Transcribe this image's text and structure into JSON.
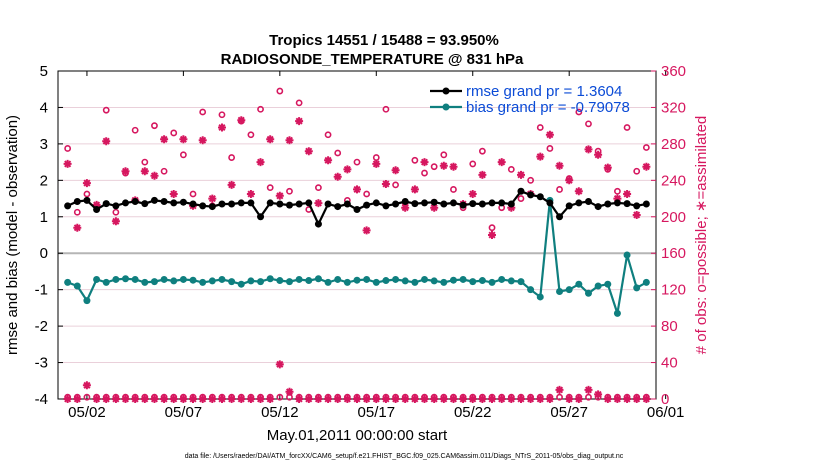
{
  "colors": {
    "rmse": "#000000",
    "bias": "#0f7f7f",
    "obs": "#d6175f",
    "legend_text": "#0b4bd6",
    "grid": "#ead0da",
    "zero_line": "#b5b5b5"
  },
  "chart_data": {
    "type": "line",
    "title": "Tropics 14551 / 15488 = 93.950%",
    "subtitle": "RADIOSONDE_TEMPERATURE @ 831 hPa",
    "xlabel": "May.01,2011 00:00:00 start",
    "ylabel": "rmse and bias (model - observation)",
    "y2label": "# of obs: o=possible; ∗=assimilated",
    "footer": "data file: /Users/raeder/DAI/ATM_forcXX/CAM6_setup/f.e21.FHIST_BGC.f09_025.CAM6assim.011/Diags_NTrS_2011-05/obs_diag_output.nc",
    "xlim": [
      0.5,
      31.5
    ],
    "ylim": [
      -4,
      5
    ],
    "y2lim": [
      0,
      360
    ],
    "x_ticks": [
      2,
      7,
      12,
      17,
      22,
      27,
      32
    ],
    "x_tick_labels": [
      "05/02",
      "05/07",
      "05/12",
      "05/17",
      "05/22",
      "05/27",
      "06/01"
    ],
    "y_ticks": [
      -4,
      -3,
      -2,
      -1,
      0,
      1,
      2,
      3,
      4,
      5
    ],
    "y_tick_labels": [
      "-4",
      "-3",
      "-2",
      "-1",
      "0",
      "1",
      "2",
      "3",
      "4",
      "5"
    ],
    "y2_ticks": [
      0,
      40,
      80,
      120,
      160,
      200,
      240,
      280,
      320,
      360
    ],
    "y2_tick_labels": [
      "0",
      "40",
      "80",
      "120",
      "160",
      "200",
      "240",
      "280",
      "320",
      "360"
    ],
    "legend": [
      {
        "key": "rmse",
        "label": "rmse grand pr = 1.3604"
      },
      {
        "key": "bias",
        "label": "bias grand pr = -0.79078"
      }
    ],
    "x": [
      1.0,
      1.5,
      2.0,
      2.5,
      3.0,
      3.5,
      4.0,
      4.5,
      5.0,
      5.5,
      6.0,
      6.5,
      7.0,
      7.5,
      8.0,
      8.5,
      9.0,
      9.5,
      10.0,
      10.5,
      11.0,
      11.5,
      12.0,
      12.5,
      13.0,
      13.5,
      14.0,
      14.5,
      15.0,
      15.5,
      16.0,
      16.5,
      17.0,
      17.5,
      18.0,
      18.5,
      19.0,
      19.5,
      20.0,
      20.5,
      21.0,
      21.5,
      22.0,
      22.5,
      23.0,
      23.5,
      24.0,
      24.5,
      25.0,
      25.5,
      26.0,
      26.5,
      27.0,
      27.5,
      28.0,
      28.5,
      29.0,
      29.5,
      30.0,
      30.5,
      31.0
    ],
    "series": [
      {
        "name": "rmse",
        "axis": "left",
        "values": [
          1.3,
          1.42,
          1.45,
          1.2,
          1.36,
          1.3,
          1.38,
          1.42,
          1.36,
          1.45,
          1.42,
          1.38,
          1.4,
          1.35,
          1.3,
          1.28,
          1.35,
          1.35,
          1.38,
          1.38,
          1.0,
          1.38,
          1.35,
          1.32,
          1.35,
          1.38,
          0.8,
          1.35,
          1.28,
          1.35,
          1.2,
          1.32,
          1.38,
          1.3,
          1.35,
          1.42,
          1.36,
          1.38,
          1.4,
          1.35,
          1.38,
          1.32,
          1.36,
          1.35,
          1.38,
          1.38,
          1.35,
          1.7,
          1.6,
          1.55,
          1.38,
          1.0,
          1.3,
          1.38,
          1.42,
          1.28,
          1.35,
          1.38,
          1.36,
          1.3,
          1.35
        ]
      },
      {
        "name": "bias",
        "axis": "left",
        "values": [
          -0.8,
          -0.9,
          -1.3,
          -0.72,
          -0.8,
          -0.72,
          -0.7,
          -0.72,
          -0.8,
          -0.78,
          -0.72,
          -0.76,
          -0.72,
          -0.74,
          -0.8,
          -0.76,
          -0.72,
          -0.78,
          -0.85,
          -0.76,
          -0.78,
          -0.7,
          -0.75,
          -0.78,
          -0.72,
          -0.75,
          -0.7,
          -0.8,
          -0.72,
          -0.8,
          -0.74,
          -0.72,
          -0.8,
          -0.75,
          -0.72,
          -0.76,
          -0.8,
          -0.72,
          -0.76,
          -0.8,
          -0.74,
          -0.72,
          -0.78,
          -0.75,
          -0.8,
          -0.72,
          -0.76,
          -0.78,
          -1.0,
          -1.2,
          1.45,
          -1.05,
          -1.0,
          -0.85,
          -1.1,
          -0.9,
          -0.85,
          -1.65,
          -0.05,
          -0.95,
          -0.8
        ]
      },
      {
        "name": "possible",
        "axis": "right",
        "values": [
          275,
          205,
          225,
          212,
          317,
          205,
          248,
          295,
          260,
          300,
          250,
          292,
          268,
          225,
          315,
          212,
          312,
          265,
          305,
          290,
          318,
          232,
          338,
          228,
          325,
          208,
          232,
          290,
          270,
          218,
          260,
          225,
          265,
          318,
          235,
          215,
          262,
          248,
          255,
          268,
          230,
          210,
          258,
          272,
          188,
          210,
          252,
          220,
          240,
          298,
          275,
          230,
          242,
          315,
          302,
          272,
          252,
          228,
          298,
          250,
          276
        ]
      },
      {
        "name": "assimilated",
        "axis": "right",
        "values": [
          258,
          188,
          237,
          213,
          283,
          195,
          250,
          218,
          250,
          245,
          285,
          225,
          285,
          212,
          284,
          220,
          298,
          235,
          306,
          225,
          260,
          285,
          223,
          284,
          305,
          272,
          215,
          262,
          244,
          252,
          230,
          185,
          258,
          236,
          251,
          210,
          230,
          260,
          210,
          256,
          255,
          214,
          225,
          246,
          180,
          260,
          210,
          246,
          225,
          266,
          290,
          256,
          240,
          228,
          274,
          268,
          254,
          220,
          225,
          202,
          255
        ]
      },
      {
        "name": "possible_low",
        "axis": "right",
        "values": [
          2,
          2,
          2,
          2,
          2,
          2,
          2,
          2,
          2,
          2,
          2,
          2,
          2,
          2,
          2,
          2,
          2,
          2,
          2,
          2,
          2,
          2,
          2,
          2,
          2,
          2,
          2,
          2,
          2,
          2,
          2,
          2,
          2,
          2,
          2,
          2,
          2,
          2,
          2,
          2,
          2,
          2,
          2,
          2,
          2,
          2,
          2,
          2,
          2,
          2,
          2,
          2,
          2,
          2,
          2,
          2,
          2,
          2,
          2,
          2,
          2
        ]
      },
      {
        "name": "assimilated_low",
        "axis": "right",
        "values": [
          0,
          0,
          15,
          0,
          0,
          0,
          0,
          0,
          0,
          0,
          0,
          0,
          0,
          0,
          0,
          0,
          0,
          0,
          0,
          0,
          0,
          0,
          38,
          8,
          0,
          0,
          0,
          0,
          0,
          0,
          0,
          0,
          0,
          0,
          0,
          0,
          0,
          0,
          0,
          0,
          0,
          0,
          0,
          0,
          0,
          0,
          0,
          0,
          0,
          0,
          0,
          10,
          0,
          0,
          10,
          5,
          0,
          0,
          0,
          0,
          0
        ]
      }
    ]
  }
}
